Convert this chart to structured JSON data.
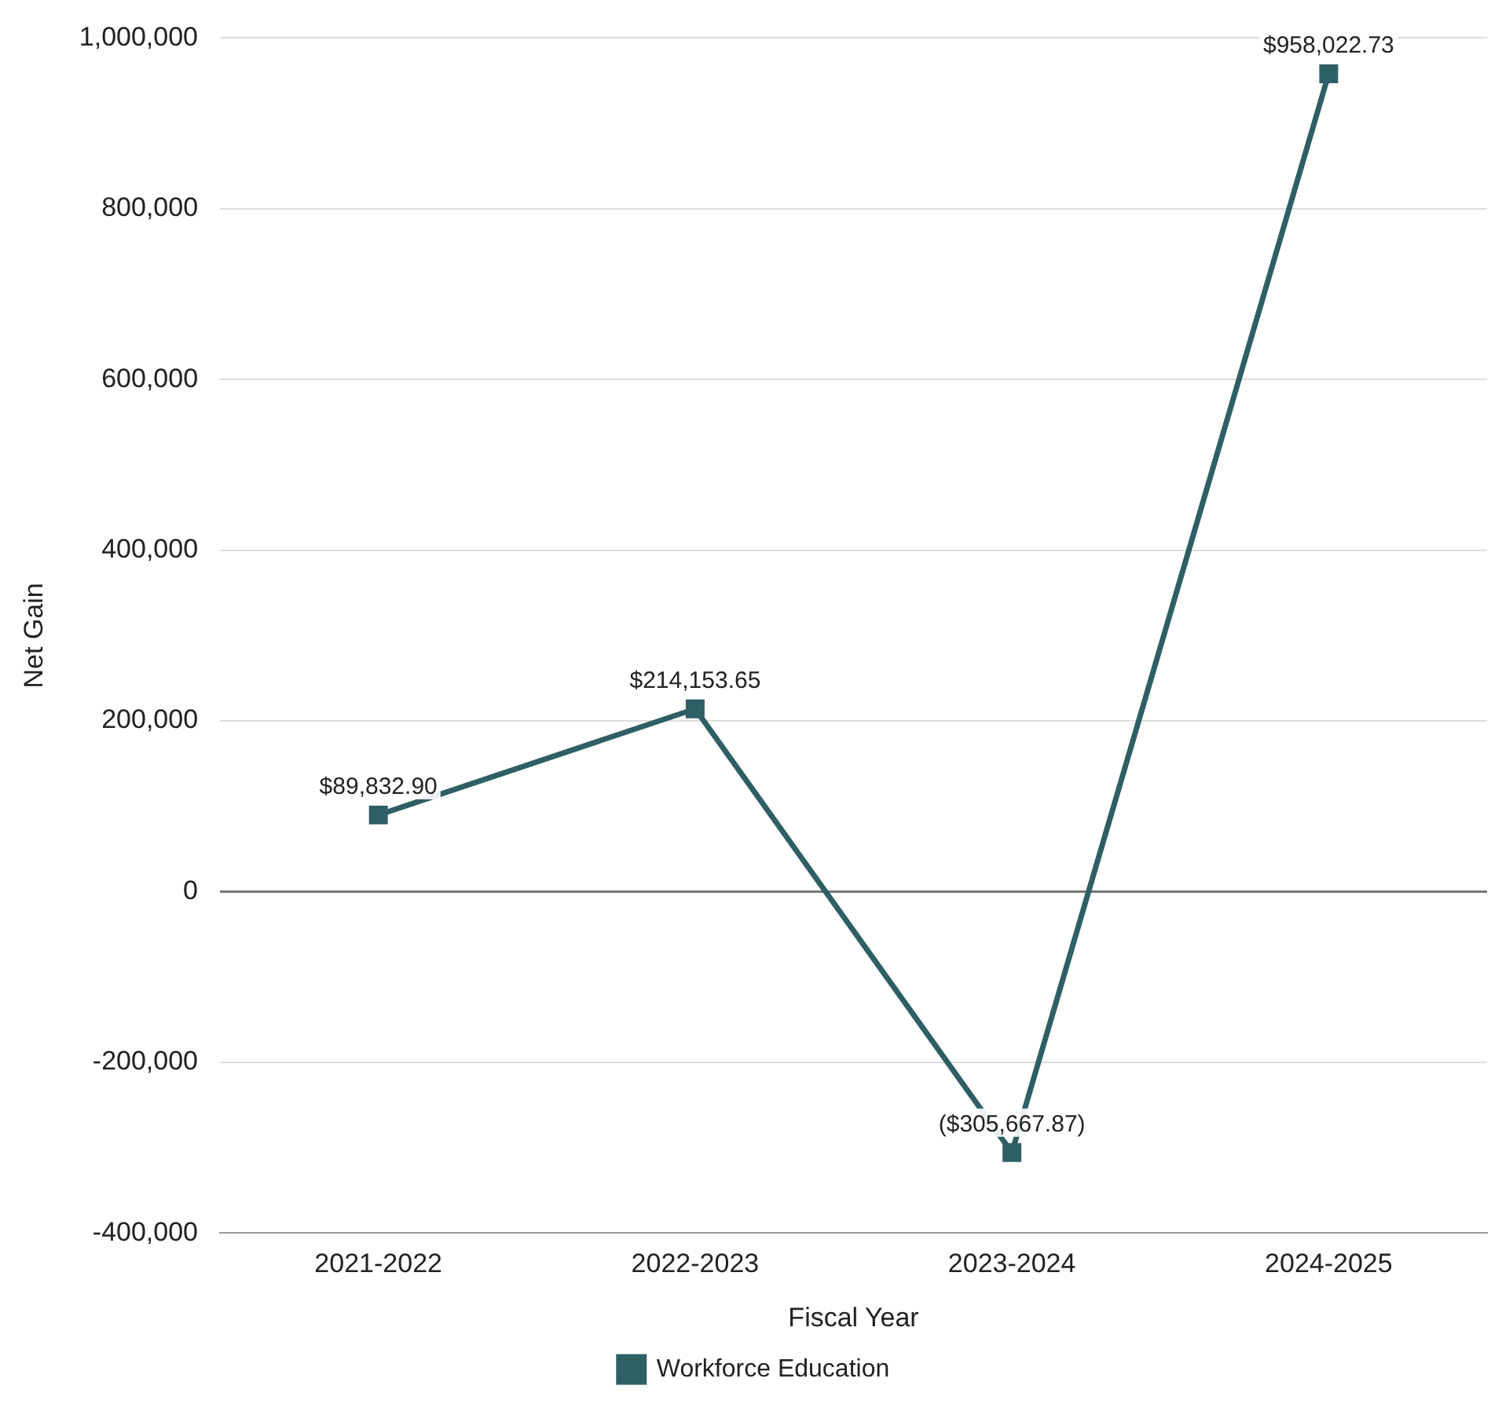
{
  "chart_data": {
    "type": "line",
    "xlabel": "Fiscal Year",
    "ylabel": "Net Gain",
    "categories": [
      "2021-2022",
      "2022-2023",
      "2023-2024",
      "2024-2025"
    ],
    "series": [
      {
        "name": "Workforce Education",
        "color": "#2e5f65",
        "values": [
          89832.9,
          214153.65,
          -305667.87,
          958022.73
        ],
        "value_labels": [
          "$89,832.90",
          "$214,153.65",
          "($305,667.87)",
          "$958,022.73"
        ]
      }
    ],
    "ylim": [
      -400000,
      1000000
    ],
    "yticks": [
      {
        "value": -400000,
        "label": "-400,000"
      },
      {
        "value": -200000,
        "label": "-200,000"
      },
      0,
      {
        "value": 200000,
        "label": "200,000"
      },
      {
        "value": 400000,
        "label": "400,000"
      },
      {
        "value": 600000,
        "label": "600,000"
      },
      {
        "value": 800000,
        "label": "800,000"
      },
      {
        "value": 1000000,
        "label": "1,000,000"
      }
    ],
    "grid": "y",
    "legend": "bottom",
    "marker": "square",
    "line_style": "solid"
  }
}
